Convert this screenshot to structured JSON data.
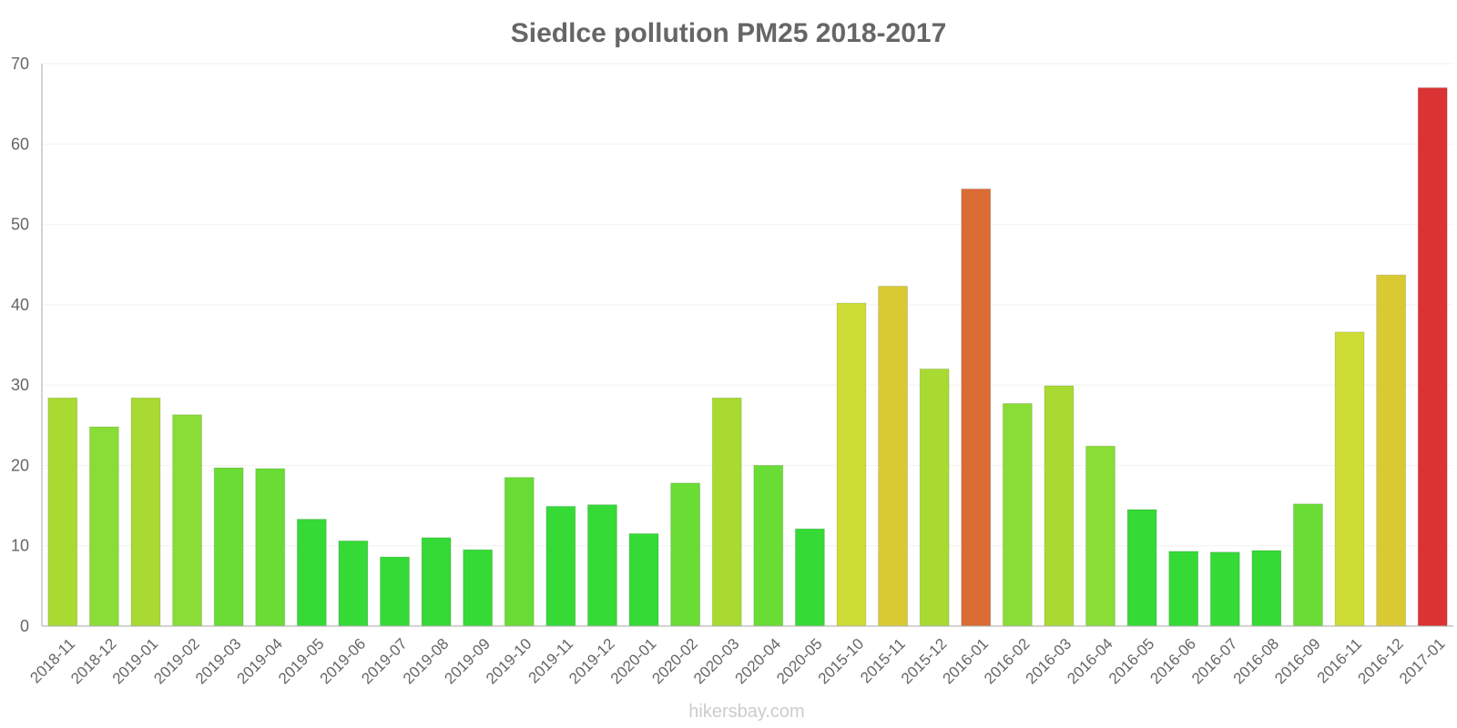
{
  "chart_data": {
    "type": "bar",
    "title": "Siedlce pollution PM25 2018-2017",
    "xlabel": "",
    "ylabel": "",
    "ylim": [
      0,
      70
    ],
    "yticks": [
      0,
      10,
      20,
      30,
      40,
      50,
      60,
      70
    ],
    "grid": true,
    "categories": [
      "2018-11",
      "2018-12",
      "2019-01",
      "2019-02",
      "2019-03",
      "2019-04",
      "2019-05",
      "2019-06",
      "2019-07",
      "2019-08",
      "2019-09",
      "2019-10",
      "2019-11",
      "2019-12",
      "2020-01",
      "2020-02",
      "2020-03",
      "2020-04",
      "2020-05",
      "2015-10",
      "2015-11",
      "2015-12",
      "2016-01",
      "2016-02",
      "2016-03",
      "2016-04",
      "2016-05",
      "2016-06",
      "2016-07",
      "2016-08",
      "2016-09",
      "2016-11",
      "2016-12",
      "2017-01"
    ],
    "values": [
      28.4,
      24.8,
      28.4,
      26.3,
      19.7,
      19.6,
      13.3,
      10.6,
      8.6,
      11.0,
      9.5,
      18.5,
      14.9,
      15.1,
      11.5,
      17.8,
      28.4,
      20.0,
      12.1,
      40.2,
      42.3,
      32.0,
      54.4,
      27.7,
      29.9,
      22.4,
      14.5,
      9.3,
      9.2,
      9.4,
      15.2,
      36.6,
      43.7,
      67.0
    ],
    "colors": [
      "#a8da32",
      "#8adc36",
      "#a8da32",
      "#8adc36",
      "#6adc36",
      "#6adc36",
      "#35da36",
      "#35da36",
      "#35da36",
      "#35da36",
      "#35da36",
      "#6adc36",
      "#35da36",
      "#35da36",
      "#35da36",
      "#6adc36",
      "#a8da32",
      "#6adc36",
      "#35da36",
      "#cddd36",
      "#d9ca34",
      "#a8da32",
      "#db6c33",
      "#8adc36",
      "#a8da32",
      "#8adc36",
      "#35da36",
      "#35da36",
      "#35da36",
      "#35da36",
      "#6adc36",
      "#cddd36",
      "#d9ca34",
      "#db3333"
    ]
  },
  "watermark": "hikersbay.com"
}
